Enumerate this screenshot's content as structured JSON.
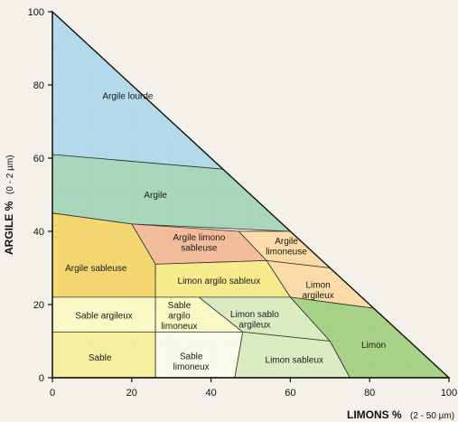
{
  "chart_data": {
    "type": "texture-triangle",
    "x_axis": {
      "label": "LIMONS %",
      "unit": "(2 - 50 µm)",
      "range": [
        0,
        100
      ],
      "ticks": [
        "0",
        "20",
        "40",
        "60",
        "80",
        "100"
      ]
    },
    "y_axis": {
      "label": "ARGILE %",
      "unit": "(0 - 2 µm)",
      "range": [
        0,
        100
      ],
      "ticks": [
        "0",
        "20",
        "40",
        "60",
        "80",
        "100"
      ]
    },
    "grid": true,
    "zones": [
      {
        "label": "Argile lourde",
        "color": "#a9d6ea",
        "polygon": [
          [
            0,
            100
          ],
          [
            0,
            61
          ],
          [
            43,
            57
          ]
        ],
        "label_at": [
          19,
          77
        ]
      },
      {
        "label": "Argile",
        "color": "#9fd3b5",
        "polygon": [
          [
            0,
            61
          ],
          [
            43,
            57
          ],
          [
            60,
            40
          ],
          [
            20,
            42
          ],
          [
            0,
            45
          ]
        ],
        "label_at": [
          26,
          50
        ]
      },
      {
        "label": "Argile limono\nsableuse",
        "color": "#f2b48f",
        "polygon": [
          [
            20,
            42
          ],
          [
            47,
            40
          ],
          [
            54,
            32
          ],
          [
            26,
            31
          ]
        ],
        "label_at": [
          37,
          37
        ]
      },
      {
        "label": "Argile\nlimoneuse",
        "color": "#fcd79e",
        "polygon": [
          [
            47,
            40
          ],
          [
            60,
            40
          ],
          [
            70,
            30
          ],
          [
            54,
            32
          ]
        ],
        "label_at": [
          59,
          36
        ]
      },
      {
        "label": "Argile sableuse",
        "color": "#f4d35e",
        "polygon": [
          [
            0,
            45
          ],
          [
            20,
            42
          ],
          [
            26,
            31
          ],
          [
            26,
            22
          ],
          [
            0,
            22
          ]
        ],
        "label_at": [
          11,
          30
        ]
      },
      {
        "label": "Limon argilo sableux",
        "color": "#f7ea7f",
        "polygon": [
          [
            26,
            31
          ],
          [
            54,
            32
          ],
          [
            60,
            22
          ],
          [
            26,
            22
          ]
        ],
        "label_at": [
          42,
          26.5
        ]
      },
      {
        "label": "Limon\nargileux",
        "color": "#fcd79e",
        "polygon": [
          [
            54,
            32
          ],
          [
            70,
            30
          ],
          [
            81,
            19
          ],
          [
            60,
            22
          ]
        ],
        "label_at": [
          67,
          24
        ]
      },
      {
        "label": "Sable argileux",
        "color": "#fafac2",
        "polygon": [
          [
            0,
            22
          ],
          [
            26,
            22
          ],
          [
            26,
            12.5
          ],
          [
            0,
            12.5
          ]
        ],
        "label_at": [
          13,
          17
        ]
      },
      {
        "label": "Sable\nargilo\nlimoneux",
        "color": "#fafac2",
        "polygon": [
          [
            26,
            22
          ],
          [
            37,
            22
          ],
          [
            48,
            12.5
          ],
          [
            26,
            12.5
          ]
        ],
        "label_at": [
          32,
          17
        ]
      },
      {
        "label": "Limon sablo\nargileux",
        "color": "#d7ebbd",
        "polygon": [
          [
            37,
            22
          ],
          [
            60,
            22
          ],
          [
            70,
            10
          ],
          [
            48,
            12.5
          ]
        ],
        "label_at": [
          51,
          16
        ]
      },
      {
        "label": "Limon",
        "color": "#9ccd7a",
        "polygon": [
          [
            60,
            22
          ],
          [
            81,
            19
          ],
          [
            100,
            0
          ],
          [
            75,
            0
          ],
          [
            70,
            10
          ]
        ],
        "label_at": [
          81,
          9
        ]
      },
      {
        "label": "Sable",
        "color": "#f5ef95",
        "polygon": [
          [
            0,
            12.5
          ],
          [
            26,
            12.5
          ],
          [
            26,
            0
          ],
          [
            0,
            0
          ]
        ],
        "label_at": [
          12,
          5.5
        ]
      },
      {
        "label": "Sable\nlimoneux",
        "color": "#fafaea",
        "polygon": [
          [
            26,
            12.5
          ],
          [
            48,
            12.5
          ],
          [
            46,
            0
          ],
          [
            26,
            0
          ]
        ],
        "label_at": [
          35,
          4.5
        ]
      },
      {
        "label": "Limon sableux",
        "color": "#d7ebbd",
        "polygon": [
          [
            48,
            12.5
          ],
          [
            70,
            10
          ],
          [
            75,
            0
          ],
          [
            46,
            0
          ]
        ],
        "label_at": [
          61,
          5
        ]
      }
    ]
  }
}
